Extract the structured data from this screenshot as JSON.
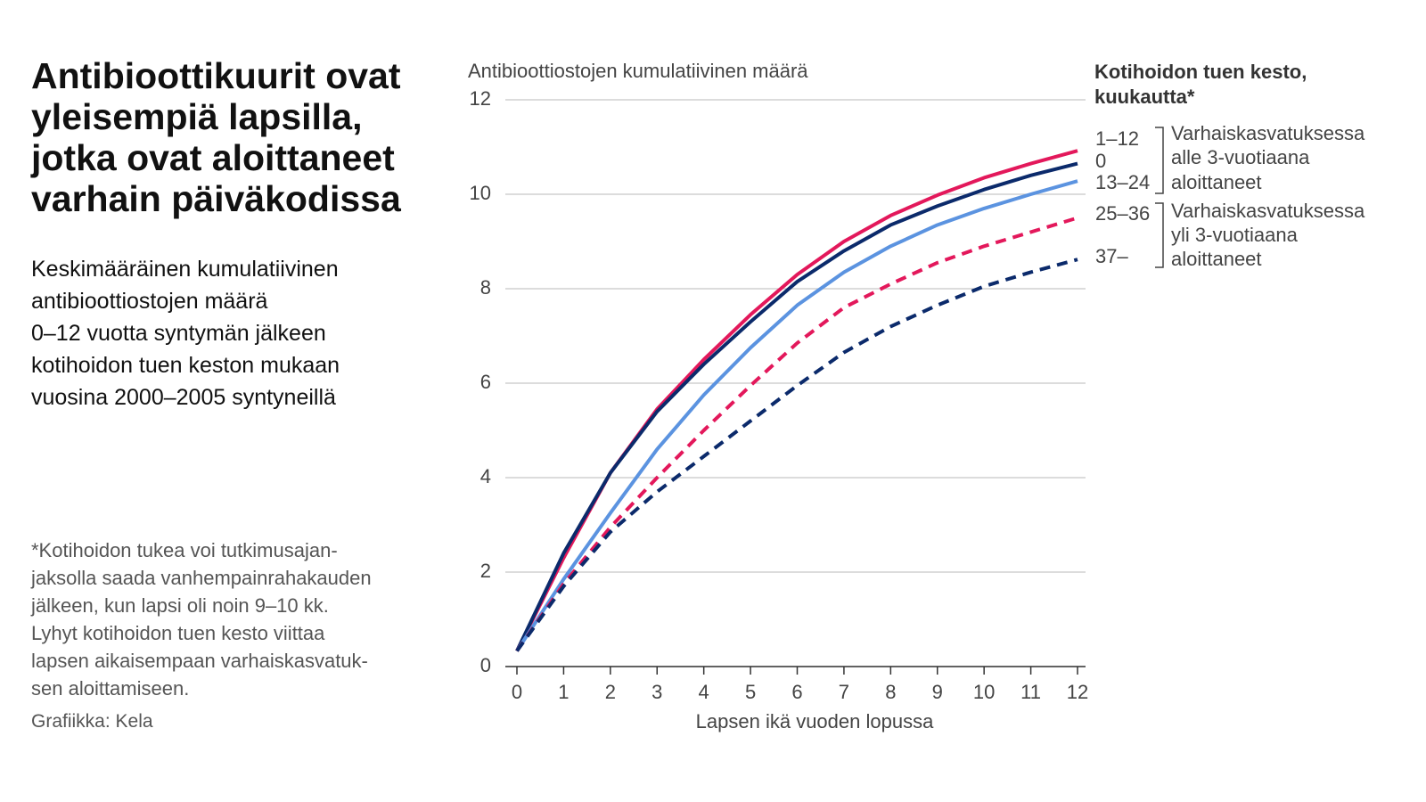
{
  "title": [
    "Antibioottikuurit ovat",
    "yleisempiä lapsilla,",
    "jotka ovat aloittaneet",
    "varhain päiväkodissa"
  ],
  "subtitle": [
    "Keskimääräinen kumulatiivinen",
    "antibioottiostojen määrä",
    "0–12 vuotta syntymän jälkeen",
    "kotihoidon tuen keston mukaan",
    "vuosina 2000–2005 syntyneillä"
  ],
  "footnote": [
    "*Kotihoidon tukea voi tutkimusajan-",
    "jaksolla saada vanhempainrahakauden",
    "jälkeen, kun lapsi oli noin 9–10 kk.",
    "Lyhyt kotihoidon tuen kesto viittaa",
    "lapsen aikaisempaan varhaiskasvatuk-",
    "sen aloittamiseen."
  ],
  "credit": "Grafiikka: Kela",
  "chart_data": {
    "type": "line",
    "y_label": "Antibioottiostojen kumulatiivinen määrä",
    "x_label": "Lapsen ikä vuoden lopussa",
    "legend_title": [
      "Kotihoidon tuen kesto,",
      "kuukautta*"
    ],
    "legend_groups": [
      [
        "Varhaiskasvatuksessa",
        "alle 3-vuotiaana",
        "aloittaneet"
      ],
      [
        "Varhaiskasvatuksessa",
        "yli 3-vuotiaana",
        "aloittaneet"
      ]
    ],
    "x": [
      0,
      1,
      2,
      3,
      4,
      5,
      6,
      7,
      8,
      9,
      10,
      11,
      12
    ],
    "xlim": [
      0,
      12
    ],
    "xticks": [
      0,
      1,
      2,
      3,
      4,
      5,
      6,
      7,
      8,
      9,
      10,
      11,
      12
    ],
    "ylim": [
      0,
      12
    ],
    "yticks": [
      0,
      2,
      4,
      6,
      8,
      10,
      12
    ],
    "grid": true,
    "series": [
      {
        "name": "1–12",
        "color": "#e3185b",
        "line_style": "solid",
        "values": [
          0.33,
          2.3,
          4.1,
          5.45,
          6.5,
          7.45,
          8.3,
          9.0,
          9.55,
          9.98,
          10.35,
          10.65,
          10.92
        ]
      },
      {
        "name": "0",
        "color": "#0b2a6b",
        "line_style": "solid",
        "values": [
          0.33,
          2.4,
          4.1,
          5.4,
          6.4,
          7.3,
          8.15,
          8.8,
          9.35,
          9.75,
          10.1,
          10.4,
          10.65
        ]
      },
      {
        "name": "13–24",
        "color": "#5b93e0",
        "line_style": "solid",
        "values": [
          0.33,
          1.85,
          3.25,
          4.6,
          5.75,
          6.75,
          7.65,
          8.35,
          8.9,
          9.35,
          9.7,
          10.0,
          10.28
        ]
      },
      {
        "name": "25–36",
        "color": "#e3185b",
        "line_style": "dashed",
        "values": [
          0.33,
          1.75,
          2.95,
          4.0,
          5.0,
          5.95,
          6.85,
          7.6,
          8.1,
          8.55,
          8.9,
          9.2,
          9.5
        ]
      },
      {
        "name": "37–",
        "color": "#0b2a6b",
        "line_style": "dashed",
        "values": [
          0.33,
          1.7,
          2.85,
          3.7,
          4.45,
          5.2,
          5.95,
          6.65,
          7.2,
          7.65,
          8.05,
          8.35,
          8.62
        ]
      }
    ]
  }
}
